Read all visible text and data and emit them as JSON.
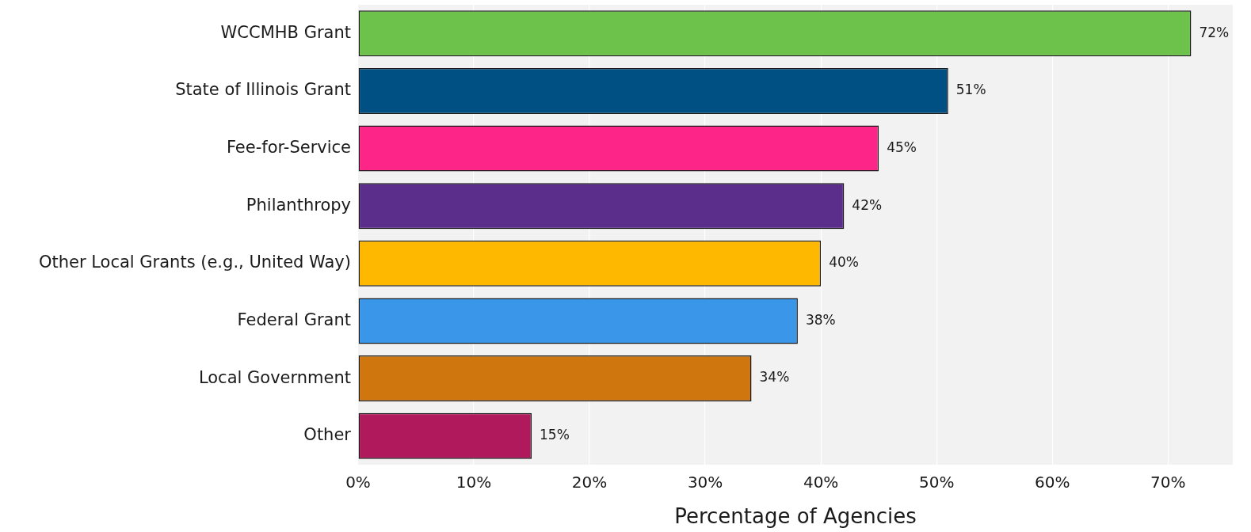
{
  "chart_data": {
    "type": "bar",
    "orientation": "horizontal",
    "xlabel": "Percentage of Agencies",
    "categories": [
      "WCCMHB Grant",
      "State of Illinois Grant",
      "Fee-for-Service",
      "Philanthropy",
      "Other Local Grants (e.g., United Way)",
      "Federal Grant",
      "Local Government",
      "Other"
    ],
    "values": [
      72,
      51,
      45,
      42,
      40,
      38,
      34,
      15
    ],
    "value_labels": [
      "72%",
      "51%",
      "45%",
      "42%",
      "40%",
      "38%",
      "34%",
      "15%"
    ],
    "colors": [
      "#6cc24a",
      "#005083",
      "#fe2589",
      "#5c2e8c",
      "#ffb800",
      "#3a96e8",
      "#cf760f",
      "#b0195c"
    ],
    "xlim": [
      0,
      75.6
    ],
    "xticks": [
      {
        "value": 0,
        "label": "0%"
      },
      {
        "value": 10,
        "label": "10%"
      },
      {
        "value": 20,
        "label": "20%"
      },
      {
        "value": 30,
        "label": "30%"
      },
      {
        "value": 40,
        "label": "40%"
      },
      {
        "value": 50,
        "label": "50%"
      },
      {
        "value": 60,
        "label": "60%"
      },
      {
        "value": 70,
        "label": "70%"
      }
    ],
    "grid": "x"
  }
}
